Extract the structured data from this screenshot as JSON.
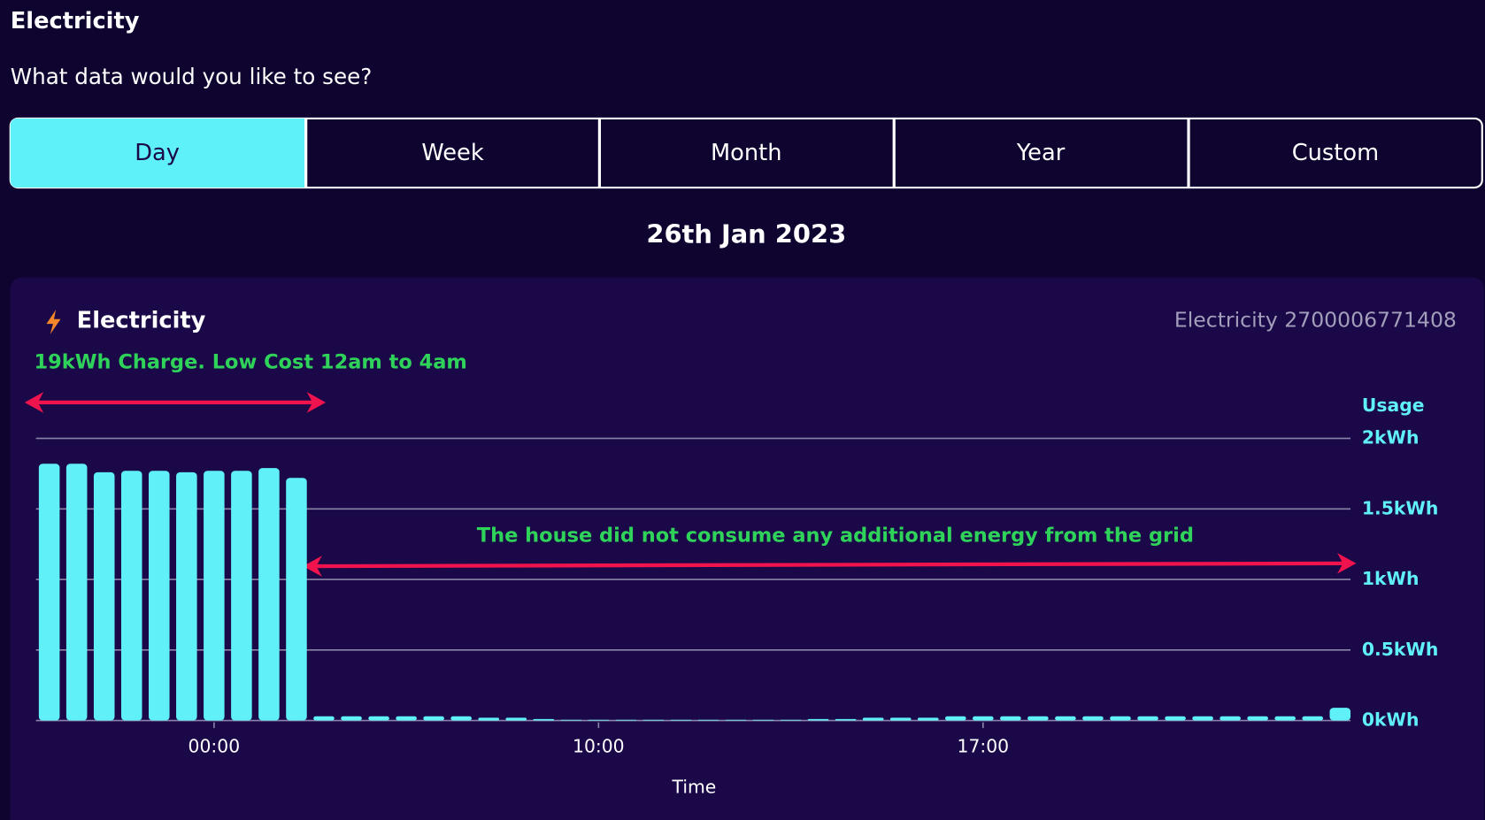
{
  "header": {
    "title": "Electricity",
    "prompt": "What data would you like to see?"
  },
  "tabs": [
    "Day",
    "Week",
    "Month",
    "Year",
    "Custom"
  ],
  "date": "26th Jan 2023",
  "card": {
    "title": "Electricity",
    "meter": "Electricity 2700006771408"
  },
  "chart_data": {
    "type": "bar",
    "y_label": "Usage",
    "x_label": "Time",
    "annotations": [
      "19kWh Charge. Low Cost 12am to 4am",
      "The house did not consume any additional energy from the grid"
    ],
    "categories": [
      null,
      null,
      null,
      null,
      null,
      null,
      "00:00",
      null,
      null,
      null,
      null,
      null,
      null,
      null,
      null,
      null,
      null,
      null,
      null,
      null,
      "10:00",
      null,
      null,
      null,
      null,
      null,
      null,
      null,
      null,
      null,
      null,
      null,
      null,
      null,
      "17:00",
      null,
      null,
      null,
      null,
      null,
      null,
      null,
      null,
      null,
      null,
      null,
      null,
      null
    ],
    "values": [
      1.82,
      1.82,
      1.76,
      1.77,
      1.77,
      1.76,
      1.77,
      1.77,
      1.79,
      1.72,
      0.03,
      0.03,
      0.03,
      0.03,
      0.03,
      0.03,
      0.02,
      0.02,
      0.01,
      0.005,
      0.005,
      0.005,
      0.005,
      0.005,
      0.005,
      0.005,
      0.005,
      0.005,
      0.01,
      0.01,
      0.02,
      0.02,
      0.02,
      0.03,
      0.03,
      0.03,
      0.03,
      0.03,
      0.03,
      0.03,
      0.03,
      0.03,
      0.03,
      0.03,
      0.03,
      0.03,
      0.03,
      0.09
    ],
    "color": "#5ff0f8",
    "ylim": [
      0,
      2
    ],
    "yticks": [
      {
        "value": 0,
        "label": "0kWh"
      },
      {
        "value": 0.5,
        "label": "0.5kWh"
      },
      {
        "value": 1,
        "label": "1kWh"
      },
      {
        "value": 1.5,
        "label": "1.5kWh"
      },
      {
        "value": 2,
        "label": "2kWh"
      }
    ],
    "grid": true
  }
}
